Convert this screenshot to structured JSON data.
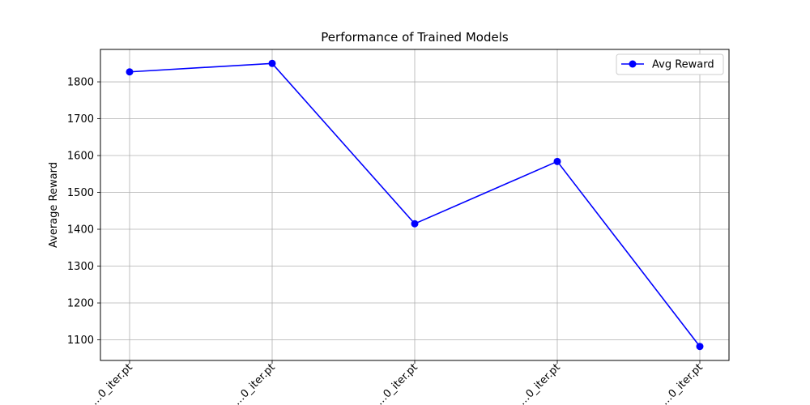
{
  "chart_data": {
    "type": "line",
    "title": "Performance of Trained Models",
    "xlabel": "",
    "ylabel": "Average Reward",
    "categories": [
      "…0_iter.pt",
      "…0_iter.pt",
      "…0_iter.pt",
      "…0_iter.pt",
      "…0_iter.pt"
    ],
    "series": [
      {
        "name": "Avg Reward",
        "values": [
          1827,
          1850,
          1415,
          1584,
          1082
        ],
        "color": "#0000ff",
        "marker": "circle"
      }
    ],
    "yticks": [
      1100,
      1200,
      1300,
      1400,
      1500,
      1600,
      1700,
      1800
    ],
    "ylim": [
      1044,
      1888
    ],
    "grid": true,
    "legend_position": "top-right",
    "xtick_rotation": 45
  }
}
